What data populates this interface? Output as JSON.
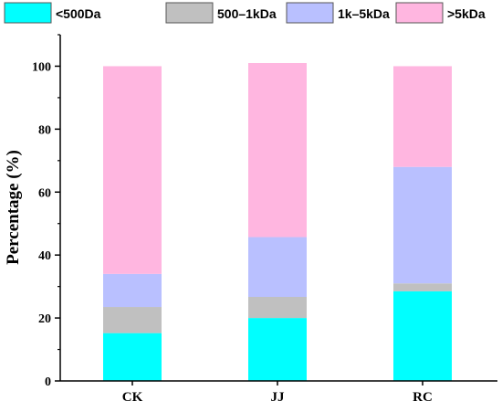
{
  "chart_data": {
    "type": "bar",
    "stacked": true,
    "categories": [
      "CK",
      "JJ",
      "RC"
    ],
    "series": [
      {
        "name": "<500Da",
        "color": "#00ffff",
        "values": [
          15.2,
          20.0,
          28.5
        ]
      },
      {
        "name": "500–1kDa",
        "color": "#c0c0c0",
        "values": [
          8.3,
          6.7,
          2.5
        ]
      },
      {
        "name": "1k–5kDa",
        "color": "#b9c0ff",
        "values": [
          10.5,
          19.0,
          37.0
        ]
      },
      {
        "name": ">5kDa",
        "color": "#ffb6e0",
        "values": [
          66.0,
          55.3,
          32.0
        ]
      }
    ],
    "ylabel": "Percentage (%)",
    "xlabel": "",
    "ylim": [
      0,
      110
    ],
    "yticks": [
      0,
      20,
      40,
      60,
      80,
      100
    ],
    "grid": false,
    "legend_position": "top"
  }
}
